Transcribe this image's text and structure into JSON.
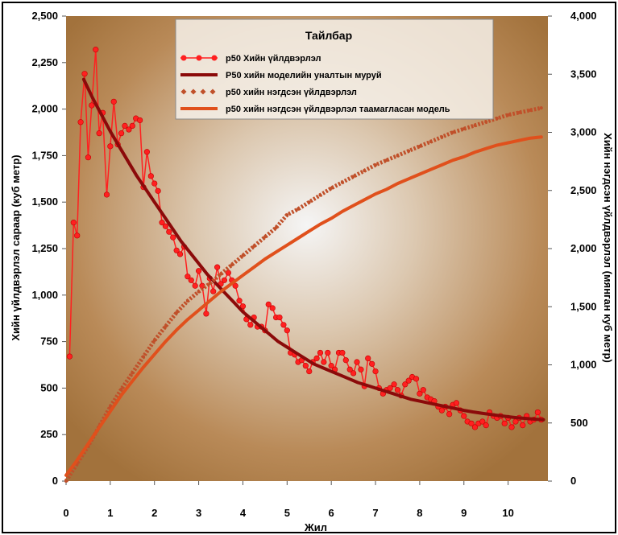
{
  "chart_data": {
    "type": "line",
    "xlabel": "Жил",
    "ylabel": "Хийн үйлдвэрлэл сараар (куб метр)",
    "y2label": "Хийн нэгдсэн үйлдвэрлэл (мянган куб метр)",
    "xlim": [
      0,
      10.9
    ],
    "ylim": [
      0,
      2500
    ],
    "y2lim": [
      0,
      4000
    ],
    "x_ticks": [
      0,
      1,
      2,
      3,
      4,
      5,
      6,
      7,
      8,
      9,
      10
    ],
    "y_ticks": [
      "0",
      "250",
      "500",
      "750",
      "1,000",
      "1,250",
      "1,500",
      "1,750",
      "2,000",
      "2,250",
      "2,500"
    ],
    "y_tick_values": [
      0,
      250,
      500,
      750,
      1000,
      1250,
      1500,
      1750,
      2000,
      2250,
      2500
    ],
    "y2_ticks": [
      "0",
      "500",
      "1,000",
      "1,500",
      "2,000",
      "2,500",
      "3,000",
      "3,500",
      "4,000"
    ],
    "y2_tick_values": [
      0,
      500,
      1000,
      1500,
      2000,
      2500,
      3000,
      3500,
      4000
    ],
    "grid": false,
    "legend": {
      "title": "Тайлбар",
      "position": "top-center",
      "entries": [
        "p50 Хийн үйлдвэрлэл",
        "P50 хийн моделийн уналтын муруй",
        "p50 хийн нэгдсэн үйлдвэрлэл",
        "p50 хийн нэгдсэн үйлдвэрлэл таамагласан модель"
      ]
    },
    "series": [
      {
        "name": "p50 Хийн үйлдвэрлэл",
        "axis": "left",
        "color": "#ff2020",
        "style": "line-markers",
        "x": [
          0.08,
          0.17,
          0.25,
          0.33,
          0.42,
          0.5,
          0.58,
          0.67,
          0.75,
          0.83,
          0.92,
          1.0,
          1.08,
          1.17,
          1.25,
          1.33,
          1.42,
          1.5,
          1.58,
          1.67,
          1.75,
          1.83,
          1.92,
          2.0,
          2.08,
          2.17,
          2.25,
          2.33,
          2.42,
          2.5,
          2.58,
          2.67,
          2.75,
          2.83,
          2.92,
          3.0,
          3.08,
          3.17,
          3.25,
          3.33,
          3.42,
          3.5,
          3.58,
          3.67,
          3.75,
          3.83,
          3.92,
          4.0,
          4.08,
          4.17,
          4.25,
          4.33,
          4.42,
          4.5,
          4.58,
          4.67,
          4.75,
          4.83,
          4.92,
          5.0,
          5.08,
          5.17,
          5.25,
          5.33,
          5.42,
          5.5,
          5.58,
          5.67,
          5.75,
          5.83,
          5.92,
          6.0,
          6.08,
          6.17,
          6.25,
          6.33,
          6.42,
          6.5,
          6.58,
          6.67,
          6.75,
          6.83,
          6.92,
          7.0,
          7.08,
          7.17,
          7.25,
          7.33,
          7.42,
          7.5,
          7.58,
          7.67,
          7.75,
          7.83,
          7.92,
          8.0,
          8.08,
          8.17,
          8.25,
          8.33,
          8.42,
          8.5,
          8.58,
          8.67,
          8.75,
          8.83,
          8.92,
          9.0,
          9.08,
          9.17,
          9.25,
          9.33,
          9.42,
          9.5,
          9.58,
          9.67,
          9.75,
          9.83,
          9.92,
          10.0,
          10.08,
          10.17,
          10.25,
          10.33,
          10.42,
          10.5,
          10.58,
          10.67,
          10.75
        ],
        "values": [
          670,
          1390,
          1320,
          1930,
          2190,
          1740,
          2020,
          2320,
          1870,
          1980,
          1540,
          1800,
          2040,
          1810,
          1870,
          1910,
          1890,
          1910,
          1950,
          1940,
          1580,
          1770,
          1640,
          1600,
          1560,
          1390,
          1370,
          1340,
          1310,
          1240,
          1220,
          1260,
          1100,
          1080,
          1050,
          1130,
          1050,
          900,
          1090,
          1020,
          1150,
          1060,
          1080,
          1120,
          1080,
          1050,
          970,
          940,
          870,
          840,
          880,
          830,
          830,
          810,
          950,
          930,
          880,
          880,
          840,
          810,
          690,
          680,
          640,
          650,
          620,
          590,
          640,
          660,
          690,
          640,
          690,
          620,
          600,
          690,
          690,
          650,
          600,
          580,
          640,
          600,
          510,
          660,
          630,
          590,
          500,
          470,
          490,
          500,
          520,
          490,
          460,
          520,
          540,
          560,
          550,
          470,
          490,
          450,
          440,
          430,
          400,
          380,
          400,
          360,
          410,
          420,
          380,
          350,
          320,
          310,
          290,
          310,
          320,
          300,
          370,
          350,
          340,
          350,
          310,
          340,
          290,
          320,
          340,
          300,
          350,
          320,
          330,
          370,
          330
        ]
      },
      {
        "name": "P50 хийн моделийн уналтын муруй",
        "axis": "left",
        "color": "#8b0a0a",
        "style": "line",
        "x": [
          0.4,
          0.6,
          0.8,
          1.0,
          1.2,
          1.4,
          1.6,
          1.8,
          2.0,
          2.2,
          2.4,
          2.6,
          2.8,
          3.0,
          3.2,
          3.4,
          3.6,
          3.8,
          4.0,
          4.2,
          4.4,
          4.6,
          4.8,
          5.0,
          5.2,
          5.4,
          5.6,
          5.8,
          6.0,
          6.2,
          6.4,
          6.6,
          6.8,
          7.0,
          7.2,
          7.4,
          7.6,
          7.8,
          8.0,
          8.2,
          8.4,
          8.6,
          8.8,
          9.0,
          9.2,
          9.4,
          9.6,
          9.8,
          10.0,
          10.2,
          10.4,
          10.6,
          10.8
        ],
        "values": [
          2160,
          2060,
          1970,
          1880,
          1800,
          1720,
          1640,
          1570,
          1500,
          1430,
          1360,
          1290,
          1230,
          1170,
          1110,
          1060,
          1010,
          960,
          910,
          870,
          830,
          790,
          750,
          720,
          690,
          660,
          630,
          610,
          590,
          570,
          550,
          530,
          515,
          500,
          485,
          470,
          455,
          440,
          430,
          420,
          410,
          400,
          390,
          380,
          372,
          365,
          358,
          352,
          346,
          341,
          337,
          333,
          330
        ]
      },
      {
        "name": "p50 хийн нэгдсэн үйлдвэрлэл",
        "axis": "right",
        "color": "#c0502a",
        "style": "markers",
        "x": [
          0.0,
          0.25,
          0.5,
          0.75,
          1.0,
          1.25,
          1.5,
          1.75,
          2.0,
          2.25,
          2.5,
          2.75,
          3.0,
          3.25,
          3.5,
          3.75,
          4.0,
          4.25,
          4.5,
          4.75,
          5.0,
          5.25,
          5.5,
          5.75,
          6.0,
          6.25,
          6.5,
          6.75,
          7.0,
          7.25,
          7.5,
          7.75,
          8.0,
          8.25,
          8.5,
          8.75,
          9.0,
          9.25,
          9.5,
          9.75,
          10.0,
          10.25,
          10.5,
          10.75
        ],
        "values": [
          0,
          150,
          300,
          470,
          640,
          790,
          930,
          1070,
          1210,
          1330,
          1450,
          1550,
          1630,
          1700,
          1780,
          1860,
          1940,
          2020,
          2100,
          2180,
          2290,
          2340,
          2400,
          2460,
          2520,
          2570,
          2620,
          2670,
          2720,
          2760,
          2800,
          2840,
          2880,
          2920,
          2960,
          3000,
          3030,
          3060,
          3090,
          3120,
          3150,
          3170,
          3190,
          3210
        ]
      },
      {
        "name": "p50 хийн нэгдсэн үйлдвэрлэл таамагласан модель",
        "axis": "right",
        "color": "#e0501c",
        "style": "line",
        "x": [
          0.0,
          0.25,
          0.5,
          0.75,
          1.0,
          1.25,
          1.5,
          1.75,
          2.0,
          2.25,
          2.5,
          2.75,
          3.0,
          3.25,
          3.5,
          3.75,
          4.0,
          4.25,
          4.5,
          4.75,
          5.0,
          5.25,
          5.5,
          5.75,
          6.0,
          6.25,
          6.5,
          6.75,
          7.0,
          7.25,
          7.5,
          7.75,
          8.0,
          8.25,
          8.5,
          8.75,
          9.0,
          9.25,
          9.5,
          9.75,
          10.0,
          10.25,
          10.5,
          10.75
        ],
        "values": [
          50,
          180,
          320,
          460,
          600,
          740,
          860,
          980,
          1090,
          1200,
          1300,
          1390,
          1470,
          1550,
          1630,
          1700,
          1770,
          1840,
          1910,
          1970,
          2030,
          2090,
          2150,
          2210,
          2260,
          2320,
          2370,
          2420,
          2470,
          2510,
          2560,
          2600,
          2640,
          2680,
          2720,
          2760,
          2790,
          2830,
          2860,
          2890,
          2910,
          2930,
          2950,
          2960
        ]
      }
    ]
  }
}
